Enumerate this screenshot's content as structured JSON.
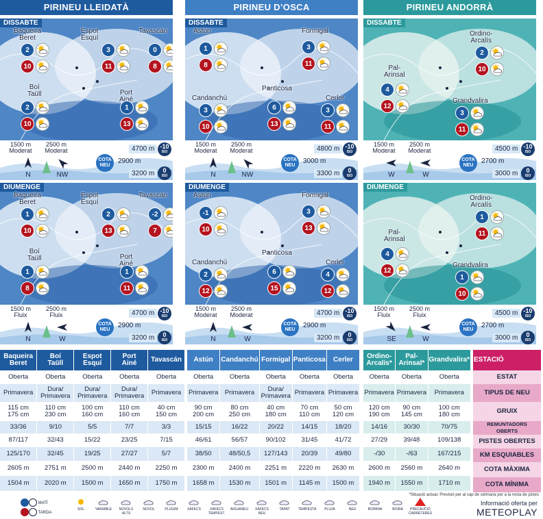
{
  "regions": [
    {
      "title": "PIRINEU LLEIDATÀ"
    },
    {
      "title": "PIRINEU D’OSCA"
    },
    {
      "title": "PIRINEU ANDORRÀ"
    }
  ],
  "days": [
    "DISSABTE",
    "DIUMENGE"
  ],
  "maps": {
    "lleida": {
      "dissabte": [
        {
          "name": "Baqueira\nBeret",
          "am": "2",
          "pm": "10",
          "wx_am": "variable",
          "wx_pm": "variable"
        },
        {
          "name": "Espot\nEsquí",
          "am": "3",
          "pm": "11",
          "wx_am": "variable",
          "wx_pm": "variable"
        },
        {
          "name": "Tavascán",
          "am": "0",
          "pm": "8",
          "wx_am": "variable",
          "wx_pm": "variable"
        },
        {
          "name": "Boí\nTaüll",
          "am": "2",
          "pm": "10",
          "wx_am": "variable",
          "wx_pm": "variable"
        },
        {
          "name": "Port\nAiné",
          "am": "1",
          "pm": "13",
          "wx_am": "variable",
          "wx_pm": "variable"
        }
      ],
      "diumenge": [
        {
          "name": "Baqueira\nBeret",
          "am": "1",
          "pm": "10",
          "wx_am": "variable",
          "wx_pm": "variable"
        },
        {
          "name": "Espot\nEsquí",
          "am": "2",
          "pm": "13",
          "wx_am": "variable",
          "wx_pm": "variable"
        },
        {
          "name": "Tavascán",
          "am": "-2",
          "pm": "7",
          "wx_am": "variable",
          "wx_pm": "variable"
        },
        {
          "name": "Boí\nTaüll",
          "am": "1",
          "pm": "8",
          "wx_am": "variable",
          "wx_pm": "variable"
        },
        {
          "name": "Port\nAiné",
          "am": "1",
          "pm": "11",
          "wx_am": "variable",
          "wx_pm": "variable"
        }
      ]
    },
    "osca": {
      "dissabte": [
        {
          "name": "Astún",
          "am": "1",
          "pm": "8",
          "wx_am": "variable",
          "wx_pm": "variable"
        },
        {
          "name": "Formigal",
          "am": "3",
          "pm": "11",
          "wx_am": "variable",
          "wx_pm": "variable"
        },
        {
          "name": "Candanchú",
          "am": "3",
          "pm": "10",
          "wx_am": "variable",
          "wx_pm": "variable"
        },
        {
          "name": "Panticosa",
          "am": "6",
          "pm": "13",
          "wx_am": "variable",
          "wx_pm": "variable"
        },
        {
          "name": "Cerler",
          "am": "3",
          "pm": "11",
          "wx_am": "variable",
          "wx_pm": "variable"
        }
      ],
      "diumenge": [
        {
          "name": "Astún",
          "am": "-1",
          "pm": "10",
          "wx_am": "variable",
          "wx_pm": "variable"
        },
        {
          "name": "Formigal",
          "am": "3",
          "pm": "13",
          "wx_am": "variable",
          "wx_pm": "variable"
        },
        {
          "name": "Candanchú",
          "am": "2",
          "pm": "12",
          "wx_am": "variable",
          "wx_pm": "variable"
        },
        {
          "name": "Panticosa",
          "am": "6",
          "pm": "15",
          "wx_am": "variable",
          "wx_pm": "variable"
        },
        {
          "name": "Cerler",
          "am": "4",
          "pm": "12",
          "wx_am": "variable",
          "wx_pm": "variable"
        }
      ]
    },
    "andorra": {
      "dissabte": [
        {
          "name": "Ordino-\nArcalís",
          "am": "2",
          "pm": "10",
          "wx_am": "variable",
          "wx_pm": "variable"
        },
        {
          "name": "Pal-\nArinsal",
          "am": "4",
          "pm": "12",
          "wx_am": "variable",
          "wx_pm": "variable"
        },
        {
          "name": "Grandvalira",
          "am": "3",
          "pm": "11",
          "wx_am": "variable",
          "wx_pm": "variable"
        }
      ],
      "diumenge": [
        {
          "name": "Ordino-\nArcalís",
          "am": "1",
          "pm": "11",
          "wx_am": "variable",
          "wx_pm": "variable"
        },
        {
          "name": "Pal-\nArinsal",
          "am": "4",
          "pm": "12",
          "wx_am": "variable",
          "wx_pm": "variable"
        },
        {
          "name": "Grandvalira",
          "am": "1",
          "pm": "10",
          "wx_am": "variable",
          "wx_pm": "variable"
        }
      ]
    }
  },
  "strips": {
    "lleida": {
      "dissabte": {
        "w1": "1500 m\nModerat",
        "w2": "2500 m\nModerat",
        "d1": "N",
        "d2": "NW",
        "iso_top": "4700 m",
        "iso_top_val": "-10",
        "cota": "2900 m",
        "iso_bot": "3200 m",
        "iso_bot_val": "0"
      },
      "diumenge": {
        "w1": "1500 m\nFluix",
        "w2": "2500 m\nFluix",
        "d1": "N",
        "d2": "W",
        "iso_top": "4700 m",
        "iso_top_val": "-10",
        "cota": "2900 m",
        "iso_bot": "3200 m",
        "iso_bot_val": "0"
      }
    },
    "osca": {
      "dissabte": {
        "w1": "1500 m\nModerat",
        "w2": "2500 m\nModerat",
        "d1": "N",
        "d2": "NW",
        "iso_top": "4800 m",
        "iso_top_val": "-10",
        "cota": "3000 m",
        "iso_bot": "3300 m",
        "iso_bot_val": "0"
      },
      "diumenge": {
        "w1": "1500 m\nModerat",
        "w2": "2500 m\nModerat",
        "d1": "N",
        "d2": "W",
        "iso_top": "4700 m",
        "iso_top_val": "-10",
        "cota": "2900 m",
        "iso_bot": "3200 m",
        "iso_bot_val": "0"
      }
    },
    "andorra": {
      "dissabte": {
        "w1": "1500 m\nModerat",
        "w2": "2500 m\nModerat",
        "d1": "W",
        "d2": "W",
        "iso_top": "4500 m",
        "iso_top_val": "-10",
        "cota": "2700 m",
        "iso_bot": "3000 m",
        "iso_bot_val": "0"
      },
      "diumenge": {
        "w1": "1500 m\nFluix",
        "w2": "2500 m\nFluix",
        "d1": "SE",
        "d2": "W",
        "iso_top": "4500 m",
        "iso_top_val": "-10",
        "cota": "2700 m",
        "iso_bot": "3000 m",
        "iso_bot_val": "0"
      }
    }
  },
  "cota_label": "COTA\nNEU",
  "iso_label": "ISO",
  "tables": {
    "lleida": {
      "headers": [
        "Baqueira\nBeret",
        "Boí\nTaüll",
        "Espot\nEsquí",
        "Port\nAiné",
        "Tavascán"
      ],
      "rows": [
        [
          "Oberta",
          "Oberta",
          "Oberta",
          "Oberta",
          "Oberta"
        ],
        [
          "Primavera",
          "Dura/\nPrimavera",
          "Dura/\nPrimavera",
          "Dura/\nPrimavera",
          "Primavera"
        ],
        [
          "115 cm\n175 cm",
          "110 cm\n230 cm",
          "100 cm\n160 cm",
          "110 cm\n160 cm",
          "40 cm\n150 cm"
        ],
        [
          "33/36",
          "9/10",
          "5/5",
          "7/7",
          "3/3"
        ],
        [
          "87/117",
          "32/43",
          "15/22",
          "23/25",
          "7/15"
        ],
        [
          "125/170",
          "32/45",
          "19/25",
          "27/27",
          "5/7"
        ],
        [
          "2605 m",
          "2751 m",
          "2500 m",
          "2440 m",
          "2250 m"
        ],
        [
          "1504 m",
          "2020 m",
          "1500 m",
          "1650 m",
          "1750 m"
        ]
      ]
    },
    "osca": {
      "headers": [
        "Astún",
        "Candanchú",
        "Formigal",
        "Panticosa",
        "Cerler"
      ],
      "rows": [
        [
          "Oberta",
          "Oberta",
          "Oberta",
          "Oberta",
          "Oberta"
        ],
        [
          "Primavera",
          "Primavera",
          "Dura/\nPrimavera",
          "Primavera",
          "Primavera"
        ],
        [
          "90 cm\n200 cm",
          "80 cm\n250 cm",
          "40 cm\n180 cm",
          "70 cm\n110 cm",
          "50 cm\n120 cm"
        ],
        [
          "15/15",
          "16/22",
          "20/22",
          "14/15",
          "18/20"
        ],
        [
          "46/61",
          "56/57",
          "90/102",
          "31/45",
          "41/72"
        ],
        [
          "38/50",
          "48/50,5",
          "127/143",
          "20/39",
          "49/80"
        ],
        [
          "2300 m",
          "2400 m",
          "2251 m",
          "2220 m",
          "2630 m"
        ],
        [
          "1658 m",
          "1530 m",
          "1501 m",
          "1145 m",
          "1500 m"
        ]
      ]
    },
    "andorra": {
      "headers": [
        "Ordino-\nArcalís*",
        "Pal-\nArinsal*",
        "Grandvalira*"
      ],
      "rows": [
        [
          "Oberta",
          "Oberta",
          "Oberta"
        ],
        [
          "Primavera",
          "Primavera",
          "Primavera"
        ],
        [
          "120 cm\n190 cm",
          "90 cm\n145 cm",
          "100 cm\n180 cm"
        ],
        [
          "14/16",
          "30/30",
          "70/75"
        ],
        [
          "27/29",
          "39/48",
          "109/138"
        ],
        [
          "-/30",
          "-/63",
          "167/215"
        ],
        [
          "2600 m",
          "2560 m",
          "2640 m"
        ],
        [
          "1940 m",
          "1550 m",
          "1710 m"
        ]
      ]
    },
    "labels": {
      "header": "ESTACIÓ",
      "rows": [
        "ESTAT",
        "TIPUS DE NEU",
        "GRUIX",
        "REMUNTADORS\nOBERTS",
        "PISTES OBERTES",
        "KM ESQUIABLES",
        "COTA MÀXIMA",
        "COTA MÍNIMA"
      ]
    }
  },
  "legend": {
    "mati": "MATÍ",
    "tarda": "TARDA",
    "items": [
      "SOL",
      "VARIABLE",
      "NÚVOLS\nALTS",
      "NÚVOL",
      "PLUGIM",
      "XÀFECS",
      "XÀFECS\nTEMPEST.",
      "AIGUANEU",
      "XÀFECS\nNEU",
      "TAPAT",
      "TEMPESTA",
      "PLUJA",
      "NEU",
      "BOIRINA",
      "BOIRA",
      "PRECAUCIÓ\nCARRETERES"
    ]
  },
  "note": "*Situació actual. Previsió per al cap de setmana per a la resta de pistes",
  "credit": {
    "line1": "Informació oferta per",
    "line2": "METEOPLAY"
  },
  "colors": {
    "lleida": "#1e5a9e",
    "osca": "#3f7fc4",
    "andorra": "#2c9a9c",
    "labels": "#cc1f66",
    "am": "#1e5a9e",
    "pm": "#b3141f"
  }
}
